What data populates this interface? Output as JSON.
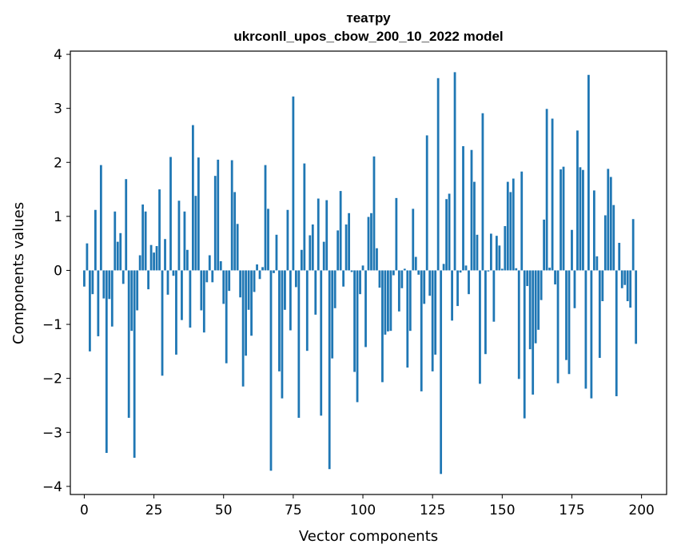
{
  "chart_data": {
    "type": "bar",
    "title_line1": "театру",
    "title_line2": "ukrconll_upos_cbow_200_10_2022 model",
    "xlabel": "Vector components",
    "ylabel": "Components values",
    "xlim": [
      -5,
      209
    ],
    "ylim": [
      -4.15,
      4.06
    ],
    "xticks": [
      0,
      25,
      50,
      75,
      100,
      125,
      150,
      175,
      200
    ],
    "yticks": [
      -4,
      -3,
      -2,
      -1,
      0,
      1,
      2,
      3,
      4
    ],
    "ytick_labels": [
      "−4",
      "−3",
      "−2",
      "−1",
      "0",
      "1",
      "2",
      "3",
      "4"
    ],
    "bar_color": "#1f77b4",
    "grid": false,
    "values": [
      -0.3,
      0.5,
      -1.5,
      -0.44,
      1.12,
      -1.22,
      1.95,
      -0.52,
      -3.38,
      -0.53,
      -1.04,
      1.09,
      0.53,
      0.69,
      -0.25,
      1.69,
      -2.73,
      -1.12,
      -3.47,
      -0.74,
      0.28,
      1.22,
      1.09,
      -0.35,
      0.47,
      0.33,
      0.45,
      1.5,
      -1.95,
      0.58,
      -0.45,
      2.1,
      -0.1,
      -1.56,
      1.29,
      -0.92,
      1.09,
      0.38,
      -1.06,
      2.69,
      1.38,
      2.09,
      -0.74,
      -1.15,
      -0.22,
      0.28,
      -0.22,
      1.75,
      2.05,
      0.17,
      -0.62,
      -1.72,
      -0.38,
      2.04,
      1.45,
      0.86,
      -0.5,
      -2.15,
      -1.58,
      -0.73,
      -1.21,
      -0.4,
      0.11,
      -0.16,
      0.06,
      1.95,
      1.14,
      -3.71,
      -0.05,
      0.66,
      -1.87,
      -2.37,
      -0.73,
      1.12,
      -1.11,
      3.22,
      -0.31,
      -2.73,
      0.38,
      1.98,
      -1.49,
      0.65,
      0.85,
      -0.82,
      1.33,
      -2.69,
      0.53,
      1.3,
      -3.68,
      -1.63,
      -0.7,
      0.74,
      1.47,
      -0.3,
      0.85,
      1.06,
      -0.03,
      -1.88,
      -2.44,
      -0.44,
      0.09,
      -1.42,
      0.99,
      1.06,
      2.11,
      0.41,
      -0.32,
      -2.07,
      -1.19,
      -1.13,
      -1.12,
      -0.09,
      1.34,
      -0.76,
      -0.33,
      0.03,
      -1.8,
      -1.12,
      1.14,
      0.25,
      -0.08,
      -2.24,
      -0.62,
      2.5,
      -0.47,
      -1.87,
      -1.56,
      3.56,
      -3.77,
      0.12,
      1.32,
      1.42,
      -0.93,
      3.67,
      -0.66,
      -0.04,
      2.3,
      0.09,
      -0.44,
      2.23,
      1.64,
      0.66,
      -2.1,
      2.91,
      -1.55,
      -0.02,
      0.68,
      -0.95,
      0.64,
      0.46,
      0.03,
      0.82,
      1.64,
      1.45,
      1.7,
      0.04,
      -2.01,
      1.83,
      -2.74,
      -0.29,
      -1.46,
      -2.3,
      -1.35,
      -1.1,
      -0.55,
      0.94,
      2.99,
      0.05,
      2.81,
      -0.26,
      -2.09,
      1.87,
      1.92,
      -1.66,
      -1.92,
      0.75,
      -0.7,
      2.59,
      1.91,
      1.86,
      -2.19,
      3.62,
      -2.37,
      1.48,
      0.26,
      -1.62,
      -0.57,
      1.02,
      1.88,
      1.73,
      1.21,
      -2.33,
      0.51,
      -0.33,
      -0.27,
      -0.57,
      -0.69,
      0.95,
      -1.36
    ]
  }
}
